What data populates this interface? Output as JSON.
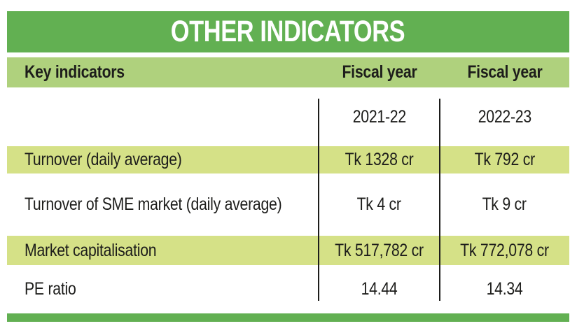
{
  "title": "OTHER INDICATORS",
  "colors": {
    "dark_green": "#62b052",
    "header_green": "#afd17d",
    "row_green": "#d5e187",
    "text": "#1d1d1b",
    "title_text": "#ffffff",
    "divider": "#1d1d1b",
    "background": "#ffffff"
  },
  "chart_data": {
    "type": "table",
    "title": "OTHER INDICATORS",
    "header": {
      "col0": "Key indicators",
      "col1": "Fiscal year",
      "col2": "Fiscal year"
    },
    "subheader": {
      "col1": "2021-22",
      "col2": "2022-23"
    },
    "rows": [
      {
        "label": "Turnover (daily average)",
        "fy_2021_22": "Tk 1328 cr",
        "fy_2022_23": "Tk 792 cr",
        "highlighted": true
      },
      {
        "label": "Turnover of SME market (daily average)",
        "fy_2021_22": "Tk 4 cr",
        "fy_2022_23": "Tk 9 cr",
        "highlighted": false
      },
      {
        "label": "Market capitalisation",
        "fy_2021_22": "Tk 517,782 cr",
        "fy_2022_23": "Tk 772,078 cr",
        "highlighted": true
      },
      {
        "label": "PE ratio",
        "fy_2021_22": "14.44",
        "fy_2022_23": "14.34",
        "highlighted": false
      }
    ]
  }
}
